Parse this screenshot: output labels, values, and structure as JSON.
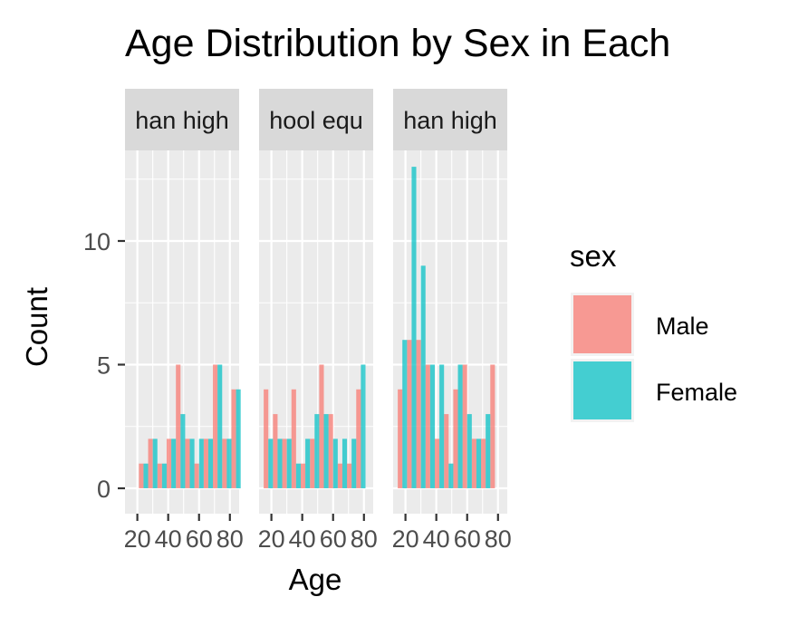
{
  "chart_data": {
    "type": "bar",
    "title": "Age Distribution by Sex in Each",
    "xlabel": "Age",
    "ylabel": "Count",
    "xlim": [
      12,
      86
    ],
    "ylim": [
      -0.9,
      14.2
    ],
    "x_ticks": [
      20,
      40,
      60,
      80
    ],
    "x_tick_labels": [
      "20",
      "40",
      "60",
      "80"
    ],
    "y_ticks": [
      0,
      5,
      10
    ],
    "y_tick_labels": [
      "0",
      "5",
      "10"
    ],
    "bin_centers": [
      18,
      24,
      30,
      36,
      42,
      48,
      54,
      60,
      66,
      72,
      78,
      84
    ],
    "legend": {
      "title": "sex",
      "position": "right",
      "entries": [
        {
          "name": "Male",
          "color": "#F8766D"
        },
        {
          "name": "Female",
          "color": "#00BFC4"
        }
      ]
    },
    "panels": [
      {
        "strip_label": "han high",
        "series": [
          {
            "name": "Male",
            "values": [
              0,
              1,
              2,
              1,
              2,
              5,
              2,
              1,
              2,
              5,
              2,
              4
            ]
          },
          {
            "name": "Female",
            "values": [
              0,
              1,
              2,
              1,
              2,
              3,
              2,
              2,
              2,
              5,
              2,
              4
            ]
          }
        ]
      },
      {
        "strip_label": "hool equ",
        "series": [
          {
            "name": "Male",
            "values": [
              4,
              3,
              2,
              4,
              1,
              2,
              5,
              3,
              1,
              1,
              4,
              0
            ]
          },
          {
            "name": "Female",
            "values": [
              2,
              2,
              2,
              1,
              2,
              3,
              3,
              2,
              2,
              2,
              5,
              0
            ]
          }
        ]
      },
      {
        "strip_label": "han high",
        "series": [
          {
            "name": "Male",
            "values": [
              4,
              6,
              6,
              5,
              2,
              3,
              4,
              5,
              2,
              2,
              5,
              0
            ]
          },
          {
            "name": "Female",
            "values": [
              6,
              13,
              9,
              5,
              5,
              1,
              5,
              3,
              2,
              3,
              0,
              0
            ]
          }
        ]
      }
    ]
  }
}
